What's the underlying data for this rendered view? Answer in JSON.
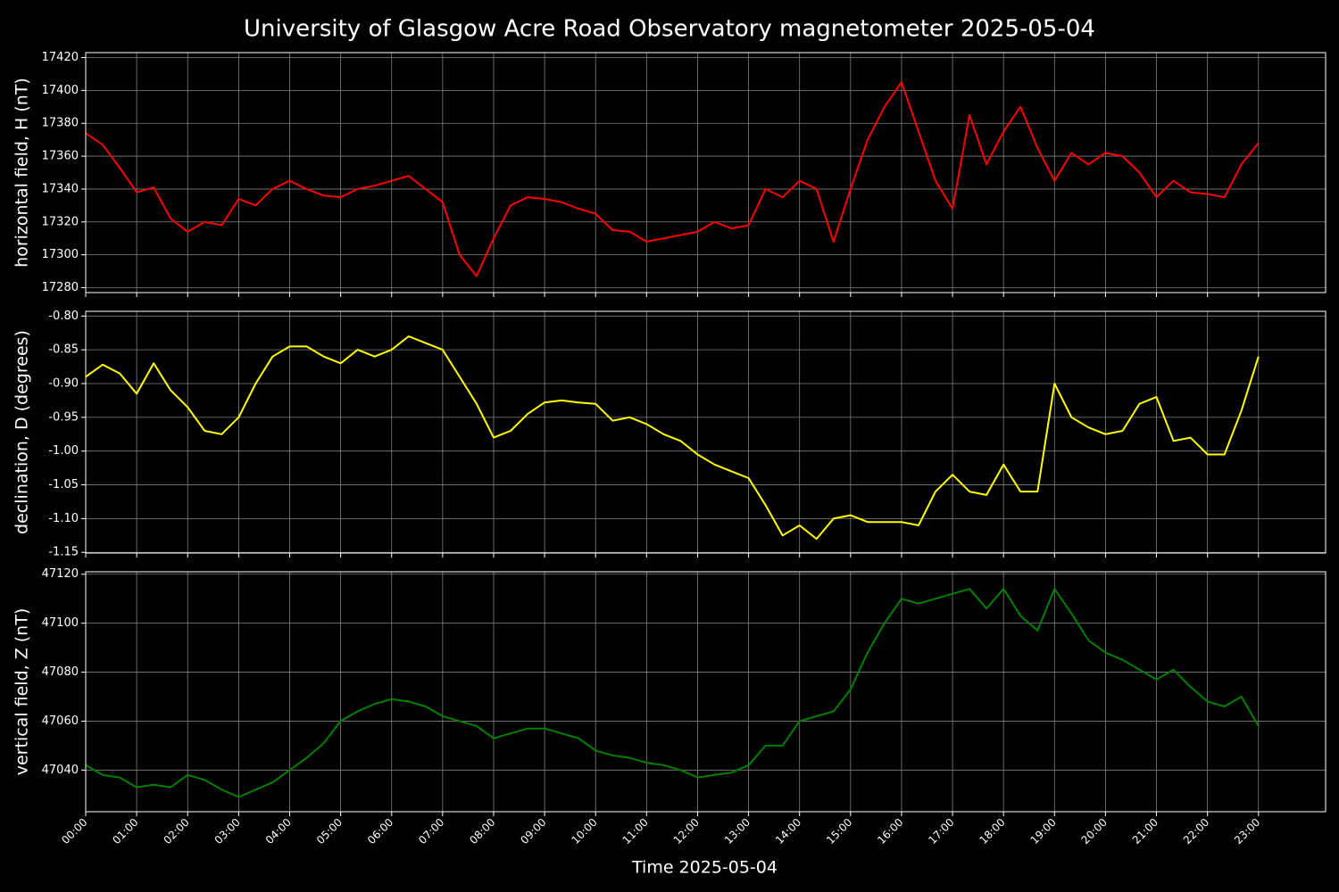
{
  "chart_data": [
    {
      "type": "line",
      "title": "University of Glasgow Acre Road Observatory magnetometer 2025-05-04",
      "y_label": "horizontal field, H (nT)",
      "grid": true,
      "x": [
        0,
        20,
        40,
        60,
        80,
        100,
        120,
        140,
        160,
        180,
        200,
        220,
        240,
        260,
        280,
        300,
        320,
        340,
        360,
        380,
        400,
        420,
        440,
        460,
        480,
        500,
        520,
        540,
        560,
        580,
        600,
        620,
        640,
        660,
        680,
        700,
        720,
        740,
        760,
        780,
        800,
        820,
        840,
        860,
        880,
        900,
        920,
        940,
        960,
        980,
        1000,
        1020,
        1040,
        1060,
        1080,
        1100,
        1120,
        1140,
        1160,
        1180,
        1200,
        1220,
        1240,
        1260,
        1280,
        1300,
        1320,
        1340,
        1360,
        1380
      ],
      "series": [
        {
          "color": "#ff0000",
          "values": [
            17374,
            17367,
            17353,
            17338,
            17341,
            17322,
            17314,
            17320,
            17318,
            17334,
            17330,
            17340,
            17345,
            17340,
            17336,
            17335,
            17340,
            17342,
            17345,
            17348,
            17340,
            17332,
            17300,
            17287,
            17310,
            17330,
            17335,
            17334,
            17332,
            17328,
            17325,
            17315,
            17314,
            17308,
            17310,
            17312,
            17314,
            17320,
            17316,
            17318,
            17340,
            17335,
            17345,
            17340,
            17308,
            17340,
            17370,
            17390,
            17405,
            17375,
            17345,
            17328,
            17385,
            17355,
            17375,
            17390,
            17365,
            17345,
            17362,
            17355,
            17362,
            17360,
            17350,
            17335,
            17345,
            17338,
            17337,
            17335,
            17355,
            17368
          ]
        }
      ],
      "ylim": [
        17277,
        17423
      ],
      "yticks": [
        17280,
        17300,
        17320,
        17340,
        17360,
        17380,
        17400,
        17420
      ]
    },
    {
      "type": "line",
      "y_label": "declination, D (degrees)",
      "grid": true,
      "x": [
        0,
        20,
        40,
        60,
        80,
        100,
        120,
        140,
        160,
        180,
        200,
        220,
        240,
        260,
        280,
        300,
        320,
        340,
        360,
        380,
        400,
        420,
        440,
        460,
        480,
        500,
        520,
        540,
        560,
        580,
        600,
        620,
        640,
        660,
        680,
        700,
        720,
        740,
        760,
        780,
        800,
        820,
        840,
        860,
        880,
        900,
        920,
        940,
        960,
        980,
        1000,
        1020,
        1040,
        1060,
        1080,
        1100,
        1120,
        1140,
        1160,
        1180,
        1200,
        1220,
        1240,
        1260,
        1280,
        1300,
        1320,
        1340,
        1360,
        1380
      ],
      "series": [
        {
          "color": "#ffff00",
          "values": [
            -0.89,
            -0.872,
            -0.885,
            -0.915,
            -0.87,
            -0.91,
            -0.935,
            -0.97,
            -0.975,
            -0.95,
            -0.9,
            -0.86,
            -0.845,
            -0.845,
            -0.86,
            -0.87,
            -0.85,
            -0.86,
            -0.85,
            -0.83,
            -0.84,
            -0.85,
            -0.89,
            -0.93,
            -0.98,
            -0.97,
            -0.945,
            -0.928,
            -0.925,
            -0.928,
            -0.93,
            -0.955,
            -0.95,
            -0.96,
            -0.975,
            -0.985,
            -1.005,
            -1.02,
            -1.03,
            -1.04,
            -1.08,
            -1.125,
            -1.11,
            -1.13,
            -1.1,
            -1.095,
            -1.105,
            -1.105,
            -1.105,
            -1.11,
            -1.06,
            -1.035,
            -1.06,
            -1.065,
            -1.02,
            -1.06,
            -1.06,
            -0.9,
            -0.95,
            -0.965,
            -0.975,
            -0.97,
            -0.93,
            -0.92,
            -0.985,
            -0.98,
            -1.005,
            -1.005,
            -0.94,
            -0.86
          ]
        }
      ],
      "ylim": [
        -1.151,
        -0.793
      ],
      "yticks": [
        {
          "value": -1.15,
          "label": "-1.15"
        },
        {
          "value": -1.1,
          "label": "-1.10"
        },
        -1.05,
        {
          "value": -1.0,
          "label": "-1.00"
        },
        -0.95,
        {
          "value": -0.9,
          "label": "-0.90"
        },
        -0.85,
        {
          "value": -0.8,
          "label": "-0.80"
        }
      ]
    },
    {
      "type": "line",
      "y_label": "vertical field, Z (nT)",
      "x_label": "Time 2025-05-04",
      "grid": true,
      "x": [
        0,
        20,
        40,
        60,
        80,
        100,
        120,
        140,
        160,
        180,
        200,
        220,
        240,
        260,
        280,
        300,
        320,
        340,
        360,
        380,
        400,
        420,
        440,
        460,
        480,
        500,
        520,
        540,
        560,
        580,
        600,
        620,
        640,
        660,
        680,
        700,
        720,
        740,
        760,
        780,
        800,
        820,
        840,
        860,
        880,
        900,
        920,
        940,
        960,
        980,
        1000,
        1020,
        1040,
        1060,
        1080,
        1100,
        1120,
        1140,
        1160,
        1180,
        1200,
        1220,
        1240,
        1260,
        1280,
        1300,
        1320,
        1340,
        1360,
        1380
      ],
      "series": [
        {
          "color": "#007f00",
          "values": [
            47042,
            47038,
            47037,
            47033,
            47034,
            47033,
            47038,
            47036,
            47032,
            47029,
            47032,
            47035,
            47040,
            47045,
            47051,
            47060,
            47064,
            47067,
            47069,
            47068,
            47066,
            47062,
            47060,
            47058,
            47053,
            47055,
            47057,
            47057,
            47055,
            47053,
            47048,
            47046,
            47045,
            47043,
            47042,
            47040,
            47037,
            47038,
            47039,
            47042,
            47050,
            47050,
            47060,
            47062,
            47064,
            47073,
            47088,
            47100,
            47110,
            47108,
            47110,
            47112,
            47114,
            47106,
            47114,
            47103,
            47097,
            47114,
            47104,
            47093,
            47088,
            47085,
            47081,
            47077,
            47081,
            47074,
            47068,
            47066,
            47070,
            47058
          ]
        }
      ],
      "ylim": [
        47023,
        47121
      ],
      "yticks": [
        47040,
        47060,
        47080,
        47100,
        47120
      ],
      "xlim": [
        0,
        1459
      ],
      "xticks": [
        {
          "value": 0,
          "label": "00:00"
        },
        {
          "value": 60,
          "label": "01:00"
        },
        {
          "value": 120,
          "label": "02:00"
        },
        {
          "value": 180,
          "label": "03:00"
        },
        {
          "value": 240,
          "label": "04:00"
        },
        {
          "value": 300,
          "label": "05:00"
        },
        {
          "value": 360,
          "label": "06:00"
        },
        {
          "value": 420,
          "label": "07:00"
        },
        {
          "value": 480,
          "label": "08:00"
        },
        {
          "value": 540,
          "label": "09:00"
        },
        {
          "value": 600,
          "label": "10:00"
        },
        {
          "value": 660,
          "label": "11:00"
        },
        {
          "value": 720,
          "label": "12:00"
        },
        {
          "value": 780,
          "label": "13:00"
        },
        {
          "value": 840,
          "label": "14:00"
        },
        {
          "value": 900,
          "label": "15:00"
        },
        {
          "value": 960,
          "label": "16:00"
        },
        {
          "value": 1020,
          "label": "17:00"
        },
        {
          "value": 1080,
          "label": "18:00"
        },
        {
          "value": 1140,
          "label": "19:00"
        },
        {
          "value": 1200,
          "label": "20:00"
        },
        {
          "value": 1260,
          "label": "21:00"
        },
        {
          "value": 1320,
          "label": "22:00"
        },
        {
          "value": 1380,
          "label": "23:00"
        }
      ]
    }
  ]
}
